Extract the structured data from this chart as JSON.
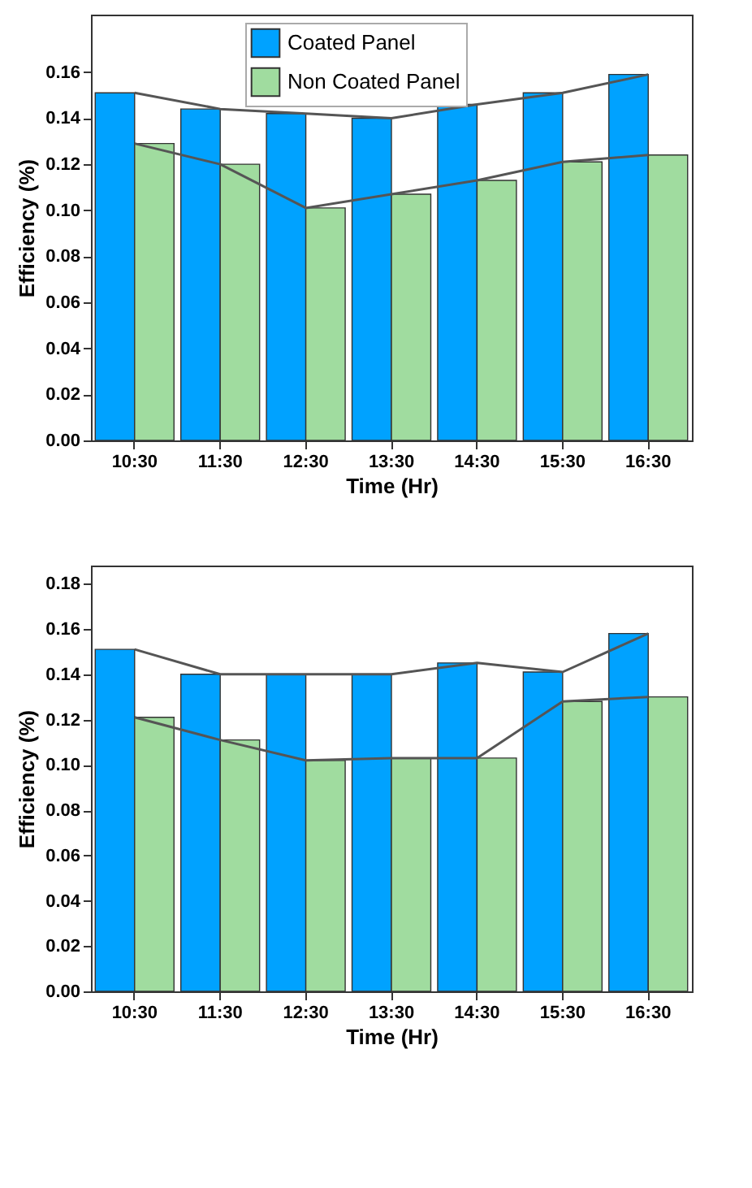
{
  "chart_data": [
    {
      "type": "bar",
      "xlabel": "Time (Hr)",
      "ylabel": "Efficiency (%)",
      "categories": [
        "10:30",
        "11:30",
        "12:30",
        "13:30",
        "14:30",
        "15:30",
        "16:30"
      ],
      "ylim": [
        0,
        0.185
      ],
      "yticks": [
        {
          "value": 0,
          "label": "0.00"
        },
        {
          "value": 0.02,
          "label": "0.02"
        },
        {
          "value": 0.04,
          "label": "0.04"
        },
        {
          "value": 0.06,
          "label": "0.06"
        },
        {
          "value": 0.08,
          "label": "0.08"
        },
        {
          "value": 0.1,
          "label": "0.10"
        },
        {
          "value": 0.12,
          "label": "0.12"
        },
        {
          "value": 0.14,
          "label": "0.14"
        },
        {
          "value": 0.16,
          "label": "0.16"
        }
      ],
      "grid": false,
      "legend": "top",
      "series": [
        {
          "name": "Coated Panel",
          "color": "#00a2ff",
          "values": [
            0.151,
            0.144,
            0.142,
            0.14,
            0.146,
            0.151,
            0.159
          ]
        },
        {
          "name": "Non Coated Panel",
          "color": "#a0dc9f",
          "values": [
            0.129,
            0.12,
            0.101,
            0.107,
            0.113,
            0.121,
            0.124
          ]
        },
        {
          "type": "line",
          "color": "#555555",
          "values": [
            0.151,
            0.144,
            0.142,
            0.14,
            0.146,
            0.151,
            0.159
          ]
        },
        {
          "type": "line",
          "color": "#555555",
          "values": [
            0.129,
            0.12,
            0.101,
            0.107,
            0.113,
            0.121,
            0.124
          ]
        }
      ]
    },
    {
      "type": "bar",
      "xlabel": "Time (Hr)",
      "ylabel": "Efficiency (%)",
      "categories": [
        "10:30",
        "11:30",
        "12:30",
        "13:30",
        "14:30",
        "15:30",
        "16:30"
      ],
      "ylim": [
        0,
        0.188
      ],
      "yticks": [
        {
          "value": 0,
          "label": "0.00"
        },
        {
          "value": 0.02,
          "label": "0.02"
        },
        {
          "value": 0.04,
          "label": "0.04"
        },
        {
          "value": 0.06,
          "label": "0.06"
        },
        {
          "value": 0.08,
          "label": "0.08"
        },
        {
          "value": 0.1,
          "label": "0.10"
        },
        {
          "value": 0.12,
          "label": "0.12"
        },
        {
          "value": 0.14,
          "label": "0.14"
        },
        {
          "value": 0.16,
          "label": "0.16"
        },
        {
          "value": 0.18,
          "label": "0.18"
        }
      ],
      "grid": false,
      "legend": "top",
      "series": [
        {
          "name": "Coated Panel",
          "color": "#00a2ff",
          "values": [
            0.151,
            0.14,
            0.14,
            0.14,
            0.145,
            0.141,
            0.158
          ]
        },
        {
          "name": "Non Coated Panel",
          "color": "#a0dc9f",
          "values": [
            0.121,
            0.111,
            0.102,
            0.103,
            0.103,
            0.128,
            0.13
          ]
        },
        {
          "type": "line",
          "color": "#555555",
          "values": [
            0.151,
            0.14,
            0.14,
            0.14,
            0.145,
            0.141,
            0.158
          ]
        },
        {
          "type": "line",
          "color": "#555555",
          "values": [
            0.121,
            0.111,
            0.102,
            0.103,
            0.103,
            0.128,
            0.13
          ]
        }
      ]
    }
  ]
}
